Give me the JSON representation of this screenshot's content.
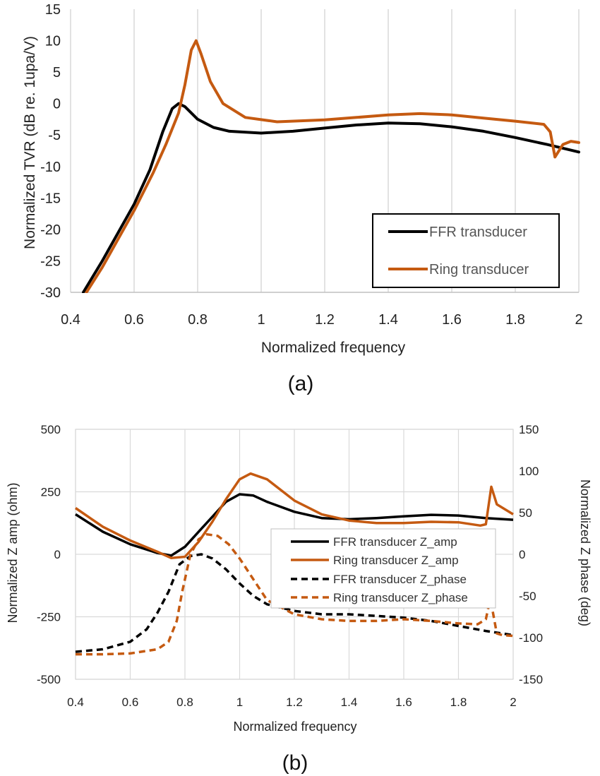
{
  "chart_data": [
    {
      "type": "line",
      "caption": "(a)",
      "xlabel": "Normalized frequency",
      "ylabel": "Normalized TVR (dB re. 1upa/V)",
      "xlim": [
        0.4,
        2.0
      ],
      "ylim": [
        -30,
        15
      ],
      "xticks": [
        "0.4",
        "0.6",
        "0.8",
        "1",
        "1.2",
        "1.4",
        "1.6",
        "1.8",
        "2"
      ],
      "yticks": [
        "15",
        "10",
        "5",
        "0",
        "-5",
        "-10",
        "-15",
        "-20",
        "-25",
        "-30"
      ],
      "grid": "vertical",
      "legend_position": "bottom-right",
      "colors": {
        "ffr": "#000000",
        "ring": "#c55a11"
      },
      "series": [
        {
          "name": "FFR transducer",
          "color": "#000000",
          "points": [
            [
              0.44,
              -30
            ],
            [
              0.5,
              -25
            ],
            [
              0.6,
              -16
            ],
            [
              0.65,
              -10.5
            ],
            [
              0.69,
              -4.5
            ],
            [
              0.72,
              -0.8
            ],
            [
              0.74,
              0
            ],
            [
              0.76,
              -0.5
            ],
            [
              0.8,
              -2.5
            ],
            [
              0.85,
              -3.8
            ],
            [
              0.9,
              -4.4
            ],
            [
              1.0,
              -4.7
            ],
            [
              1.1,
              -4.4
            ],
            [
              1.2,
              -3.9
            ],
            [
              1.3,
              -3.4
            ],
            [
              1.4,
              -3.1
            ],
            [
              1.5,
              -3.2
            ],
            [
              1.6,
              -3.7
            ],
            [
              1.7,
              -4.4
            ],
            [
              1.8,
              -5.4
            ],
            [
              1.9,
              -6.5
            ],
            [
              2.0,
              -7.7
            ]
          ]
        },
        {
          "name": "Ring transducer",
          "color": "#c55a11",
          "points": [
            [
              0.45,
              -30
            ],
            [
              0.5,
              -26
            ],
            [
              0.6,
              -17
            ],
            [
              0.66,
              -11
            ],
            [
              0.7,
              -6.5
            ],
            [
              0.74,
              -1.5
            ],
            [
              0.76,
              3
            ],
            [
              0.78,
              8.5
            ],
            [
              0.795,
              10
            ],
            [
              0.81,
              8
            ],
            [
              0.84,
              3.5
            ],
            [
              0.88,
              0
            ],
            [
              0.95,
              -2.2
            ],
            [
              1.05,
              -2.9
            ],
            [
              1.2,
              -2.6
            ],
            [
              1.3,
              -2.2
            ],
            [
              1.4,
              -1.8
            ],
            [
              1.5,
              -1.6
            ],
            [
              1.6,
              -1.8
            ],
            [
              1.7,
              -2.3
            ],
            [
              1.8,
              -2.8
            ],
            [
              1.89,
              -3.3
            ],
            [
              1.91,
              -4.5
            ],
            [
              1.925,
              -8.5
            ],
            [
              1.95,
              -6.5
            ],
            [
              1.975,
              -6
            ],
            [
              2.0,
              -6.2
            ]
          ]
        }
      ]
    },
    {
      "type": "line",
      "caption": "(b)",
      "xlabel": "Normalized frequency",
      "ylabel": "Normalized Z amp (ohm)",
      "y2label": "Normalized Z phase (deg)",
      "xlim": [
        0.4,
        2.0
      ],
      "ylim": [
        -500,
        500
      ],
      "y2lim": [
        -150,
        150
      ],
      "xticks": [
        "0.4",
        "0.6",
        "0.8",
        "1",
        "1.2",
        "1.4",
        "1.6",
        "1.8",
        "2"
      ],
      "yticks": [
        "500",
        "250",
        "0",
        "-250",
        "-500"
      ],
      "y2ticks": [
        "150",
        "100",
        "50",
        "0",
        "-50",
        "-100",
        "-150"
      ],
      "grid": "both",
      "legend_position": "right",
      "series": [
        {
          "name": "FFR transducer Z_amp",
          "color": "#000000",
          "style": "solid",
          "axis": "left",
          "points": [
            [
              0.4,
              160
            ],
            [
              0.5,
              90
            ],
            [
              0.6,
              40
            ],
            [
              0.7,
              5
            ],
            [
              0.75,
              -5
            ],
            [
              0.8,
              30
            ],
            [
              0.85,
              90
            ],
            [
              0.9,
              150
            ],
            [
              0.95,
              210
            ],
            [
              1.0,
              240
            ],
            [
              1.05,
              235
            ],
            [
              1.1,
              210
            ],
            [
              1.2,
              170
            ],
            [
              1.3,
              145
            ],
            [
              1.4,
              140
            ],
            [
              1.5,
              145
            ],
            [
              1.6,
              152
            ],
            [
              1.7,
              158
            ],
            [
              1.8,
              155
            ],
            [
              1.9,
              145
            ],
            [
              2.0,
              138
            ]
          ]
        },
        {
          "name": "Ring transducer Z_amp",
          "color": "#c55a11",
          "style": "solid",
          "axis": "left",
          "points": [
            [
              0.4,
              185
            ],
            [
              0.5,
              110
            ],
            [
              0.6,
              55
            ],
            [
              0.7,
              10
            ],
            [
              0.75,
              -15
            ],
            [
              0.8,
              -10
            ],
            [
              0.85,
              50
            ],
            [
              0.9,
              130
            ],
            [
              0.95,
              220
            ],
            [
              1.0,
              300
            ],
            [
              1.04,
              323
            ],
            [
              1.1,
              300
            ],
            [
              1.2,
              215
            ],
            [
              1.3,
              160
            ],
            [
              1.4,
              135
            ],
            [
              1.5,
              125
            ],
            [
              1.6,
              125
            ],
            [
              1.7,
              130
            ],
            [
              1.8,
              128
            ],
            [
              1.88,
              115
            ],
            [
              1.9,
              120
            ],
            [
              1.92,
              270
            ],
            [
              1.94,
              200
            ],
            [
              2.0,
              160
            ]
          ]
        },
        {
          "name": "FFR transducer Z_phase",
          "color": "#000000",
          "style": "dashed",
          "axis": "right",
          "points": [
            [
              0.4,
              -117
            ],
            [
              0.5,
              -114
            ],
            [
              0.6,
              -105
            ],
            [
              0.66,
              -90
            ],
            [
              0.7,
              -70
            ],
            [
              0.74,
              -45
            ],
            [
              0.78,
              -12
            ],
            [
              0.82,
              -2
            ],
            [
              0.86,
              0
            ],
            [
              0.9,
              -5
            ],
            [
              0.95,
              -18
            ],
            [
              1.0,
              -35
            ],
            [
              1.05,
              -50
            ],
            [
              1.1,
              -60
            ],
            [
              1.2,
              -68
            ],
            [
              1.3,
              -72
            ],
            [
              1.4,
              -72
            ],
            [
              1.5,
              -74
            ],
            [
              1.6,
              -76
            ],
            [
              1.7,
              -80
            ],
            [
              1.8,
              -86
            ],
            [
              1.9,
              -92
            ],
            [
              2.0,
              -97
            ]
          ]
        },
        {
          "name": "Ring transducer Z_phase",
          "color": "#c55a11",
          "style": "dashed",
          "axis": "right",
          "points": [
            [
              0.4,
              -120
            ],
            [
              0.5,
              -120
            ],
            [
              0.6,
              -119
            ],
            [
              0.7,
              -114
            ],
            [
              0.74,
              -105
            ],
            [
              0.77,
              -80
            ],
            [
              0.79,
              -45
            ],
            [
              0.82,
              0
            ],
            [
              0.85,
              18
            ],
            [
              0.88,
              24
            ],
            [
              0.92,
              22
            ],
            [
              0.96,
              12
            ],
            [
              1.0,
              -5
            ],
            [
              1.05,
              -30
            ],
            [
              1.1,
              -55
            ],
            [
              1.2,
              -72
            ],
            [
              1.3,
              -78
            ],
            [
              1.4,
              -80
            ],
            [
              1.5,
              -80
            ],
            [
              1.6,
              -78
            ],
            [
              1.7,
              -80
            ],
            [
              1.8,
              -83
            ],
            [
              1.87,
              -84
            ],
            [
              1.9,
              -78
            ],
            [
              1.915,
              -55
            ],
            [
              1.925,
              -68
            ],
            [
              1.94,
              -95
            ],
            [
              1.96,
              -97
            ],
            [
              2.0,
              -98
            ]
          ]
        }
      ]
    }
  ]
}
